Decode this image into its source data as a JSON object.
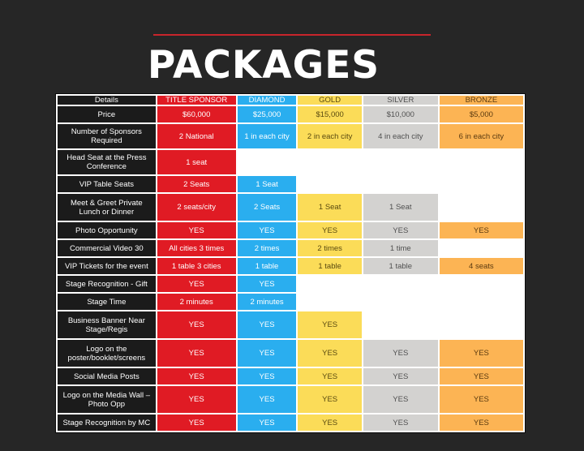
{
  "title": "PACKAGES",
  "columns": [
    "Details",
    "TITLE SPONSOR",
    "DIAMOND",
    "GOLD",
    "SILVER",
    "BRONZE"
  ],
  "colors": {
    "title_sponsor": "#e01b24",
    "diamond": "#2aaeef",
    "gold": "#fbdc58",
    "silver": "#d3d2d0",
    "bronze": "#fcb454",
    "details": "#1b1b1b",
    "accent_rule": "#c8252b"
  },
  "rows": [
    {
      "detail": "Price",
      "cells": [
        "$60,000",
        "$25,000",
        "$15,000",
        "$10,000",
        "$5,000"
      ]
    },
    {
      "detail": "Number of Sponsors Required",
      "cells": [
        "2 National",
        "1 in each city",
        "2 in each city",
        "4 in each city",
        "6 in each city"
      ]
    },
    {
      "detail": "Head Seat at the Press Conference",
      "cells": [
        "1 seat",
        "",
        "",
        "",
        ""
      ]
    },
    {
      "detail": "VIP Table Seats",
      "cells": [
        "2 Seats",
        "1 Seat",
        "",
        "",
        ""
      ]
    },
    {
      "detail": "Meet & Greet Private Lunch or Dinner",
      "cells": [
        "2 seats/city",
        "2 Seats",
        "1 Seat",
        "1 Seat",
        ""
      ]
    },
    {
      "detail": "Photo Opportunity",
      "cells": [
        "YES",
        "YES",
        "YES",
        "YES",
        "YES"
      ]
    },
    {
      "detail": "Commercial Video 30",
      "cells": [
        "All cities 3 times",
        "2 times",
        "2 times",
        "1 time",
        ""
      ]
    },
    {
      "detail": "VIP Tickets for the event",
      "cells": [
        "1 table 3 cities",
        "1 table",
        "1 table",
        "1 table",
        "4 seats"
      ]
    },
    {
      "detail": "Stage Recognition - Gift",
      "cells": [
        "YES",
        "YES",
        "",
        "",
        ""
      ]
    },
    {
      "detail": "Stage Time",
      "cells": [
        "2 minutes",
        "2 minutes",
        "",
        "",
        ""
      ]
    },
    {
      "detail": "Business Banner Near Stage/Regis",
      "cells": [
        "YES",
        "YES",
        "YES",
        "",
        ""
      ]
    },
    {
      "detail": "Logo on the poster/booklet/screens",
      "cells": [
        "YES",
        "YES",
        "YES",
        "YES",
        "YES"
      ]
    },
    {
      "detail": "Social Media Posts",
      "cells": [
        "YES",
        "YES",
        "YES",
        "YES",
        "YES"
      ]
    },
    {
      "detail": "Logo on the Media Wall – Photo Opp",
      "cells": [
        "YES",
        "YES",
        "YES",
        "YES",
        "YES"
      ]
    },
    {
      "detail": "Stage Recognition by MC",
      "cells": [
        "YES",
        "YES",
        "YES",
        "YES",
        "YES"
      ]
    }
  ]
}
